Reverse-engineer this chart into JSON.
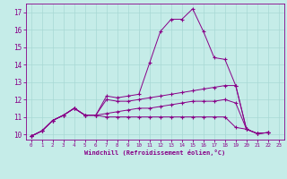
{
  "xlabel": "Windchill (Refroidissement éolien,°C)",
  "bg_color": "#c5ece8",
  "grid_color": "#a8d8d4",
  "line_color": "#880088",
  "xlim": [
    -0.5,
    23.5
  ],
  "ylim": [
    9.7,
    17.5
  ],
  "xticks": [
    0,
    1,
    2,
    3,
    4,
    5,
    6,
    7,
    8,
    9,
    10,
    11,
    12,
    13,
    14,
    15,
    16,
    17,
    18,
    19,
    20,
    21,
    22,
    23
  ],
  "yticks": [
    10,
    11,
    12,
    13,
    14,
    15,
    16,
    17
  ],
  "lines": [
    [
      9.9,
      10.2,
      10.8,
      11.1,
      11.5,
      11.1,
      11.1,
      12.2,
      12.1,
      12.2,
      12.3,
      14.1,
      15.9,
      16.6,
      16.6,
      17.2,
      15.9,
      14.4,
      14.3,
      12.8,
      10.3,
      10.05,
      10.1
    ],
    [
      9.9,
      10.2,
      10.8,
      11.1,
      11.5,
      11.1,
      11.1,
      12.0,
      11.9,
      11.9,
      12.0,
      12.1,
      12.2,
      12.3,
      12.4,
      12.5,
      12.6,
      12.7,
      12.8,
      12.8,
      10.3,
      10.05,
      10.1
    ],
    [
      9.9,
      10.2,
      10.8,
      11.1,
      11.5,
      11.1,
      11.1,
      11.2,
      11.3,
      11.4,
      11.5,
      11.5,
      11.6,
      11.7,
      11.8,
      11.9,
      11.9,
      11.9,
      12.0,
      11.8,
      10.3,
      10.05,
      10.1
    ],
    [
      9.9,
      10.2,
      10.8,
      11.1,
      11.5,
      11.1,
      11.1,
      11.0,
      11.0,
      11.0,
      11.0,
      11.0,
      11.0,
      11.0,
      11.0,
      11.0,
      11.0,
      11.0,
      11.0,
      10.4,
      10.3,
      10.05,
      10.1
    ]
  ]
}
